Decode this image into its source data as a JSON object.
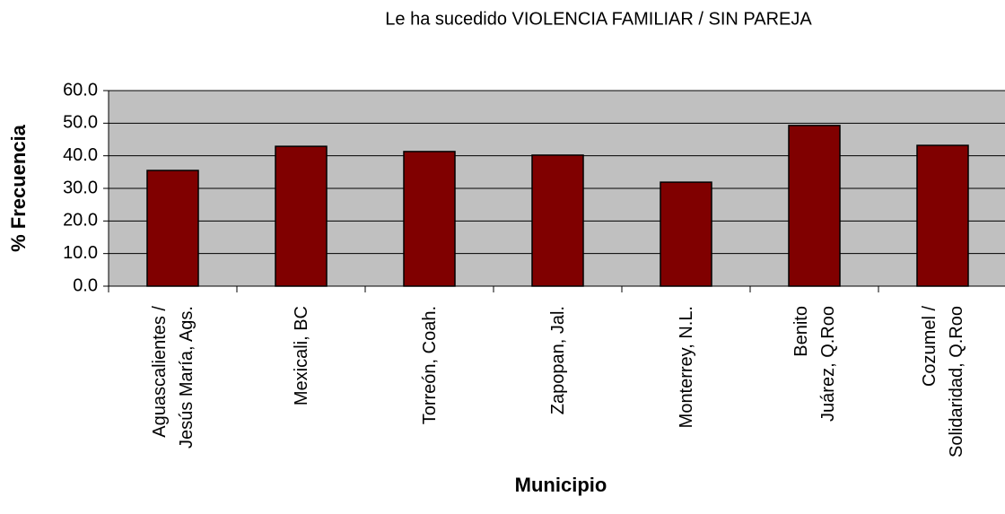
{
  "chart_data": {
    "type": "bar",
    "title": "Le ha sucedido VIOLENCIA  FAMILIAR / SIN PAREJA",
    "x_label": "Municipio",
    "y_label": "% Frecuencia",
    "categories": [
      "Aguascalientes /\nJesús María, Ags.",
      "Mexicali, BC",
      "Torreón, Coah.",
      "Zapopan, Jal.",
      "Monterrey, N.L.",
      "Benito\nJuárez, Q.Roo",
      "Cozumel /\nSolidaridad, Q.Roo"
    ],
    "values": [
      35.5,
      42.9,
      41.3,
      40.2,
      31.9,
      49.3,
      43.2
    ],
    "color": "#800000",
    "ylim": [
      0,
      60
    ],
    "yticks": [
      {
        "value": 0,
        "label": "0.0"
      },
      {
        "value": 10,
        "label": "10.0"
      },
      {
        "value": 20,
        "label": "20.0"
      },
      {
        "value": 30,
        "label": "30.0"
      },
      {
        "value": 40,
        "label": "40.0"
      },
      {
        "value": 50,
        "label": "50.0"
      },
      {
        "value": 60,
        "label": "60.0"
      }
    ],
    "grid": true
  }
}
